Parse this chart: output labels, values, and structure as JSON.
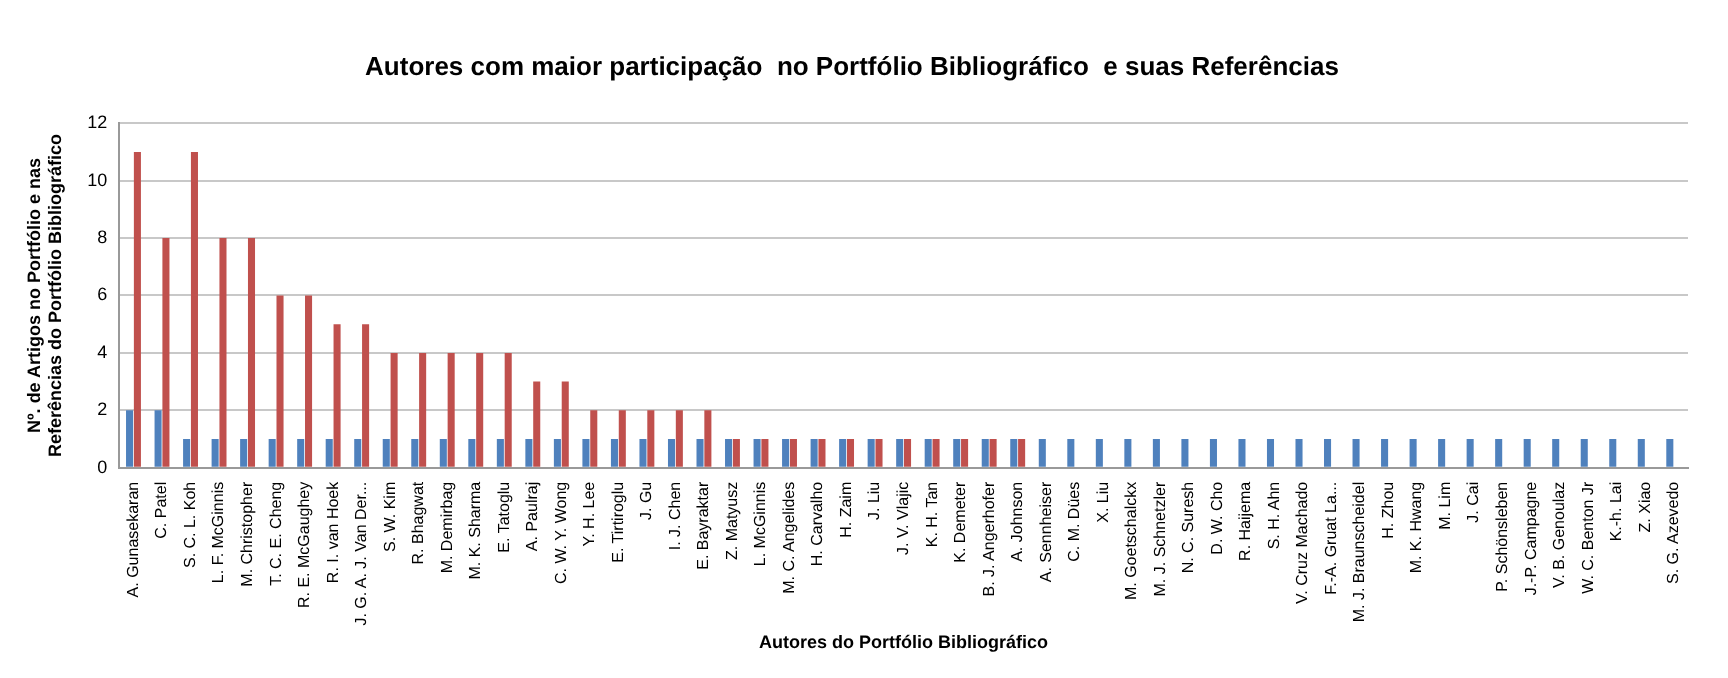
{
  "chart_data": {
    "type": "bar",
    "title": "Autores com maior participação  no Portfólio Bibliográfico  e suas Referências",
    "xlabel": "Autores do Portfólio Bibliográfico",
    "ylabel": "Nº. de Artigos no Portfólio e nas\nReferências do Portfólio Bibliográfico",
    "categories": [
      "A. Gunasekaran",
      "C. Patel",
      "S. C. L. Koh",
      "L. F. McGinnis",
      "M. Christopher",
      "T. C. E. Cheng",
      "R. E. McGaughey",
      "R. I. van Hoek",
      "J. G. A. J. Van Der...",
      "S. W. Kim",
      "R. Bhagwat",
      "M. Demirbag",
      "M. K. Sharma",
      "E. Tatoglu",
      "A. Paulraj",
      "C. W. Y. Wong",
      "Y. H. Lee",
      "E. Tirtiroglu",
      "J. Gu",
      "I. J. Chen",
      "E. Bayraktar",
      "Z. Matyusz",
      "L. McGinnis",
      "M. C. Angelides",
      "H. Carvalho",
      "H. Zaim",
      "J. Liu",
      "J. V. Vlajic",
      "K. H. Tan",
      "K. Demeter",
      "B. J. Angerhofer",
      "A. Johnson",
      "A. Sennheiser",
      "C. M. Dües",
      "X. Liu",
      "M. Goetschalckx",
      "M. J. Schnetzler",
      "N. C. Suresh",
      "D. W. Cho",
      "R. Haijema",
      "S. H. Ahn",
      "V. Cruz Machado",
      "F.-A. Gruat La...",
      "M. J. Braunscheidel",
      "H. Zhou",
      "M. K. Hwang",
      "M. Lim",
      "J. Cai",
      "P. Schönsleben",
      "J.-P. Campagne",
      "V. B. Genoulaz",
      "W. C. Benton Jr",
      "K.-h. Lai",
      "Z. Xiao",
      "S. G. Azevedo"
    ],
    "series": [
      {
        "color": "#4f81bd",
        "values": [
          2,
          2,
          1,
          1,
          1,
          1,
          1,
          1,
          1,
          1,
          1,
          1,
          1,
          1,
          1,
          1,
          1,
          1,
          1,
          1,
          1,
          1,
          1,
          1,
          1,
          1,
          1,
          1,
          1,
          1,
          1,
          1,
          1,
          1,
          1,
          1,
          1,
          1,
          1,
          1,
          1,
          1,
          1,
          1,
          1,
          1,
          1,
          1,
          1,
          1,
          1,
          1,
          1,
          1,
          1
        ]
      },
      {
        "color": "#c0504d",
        "values": [
          11,
          8,
          11,
          8,
          8,
          6,
          6,
          5,
          5,
          4,
          4,
          4,
          4,
          4,
          3,
          3,
          2,
          2,
          2,
          2,
          2,
          1,
          1,
          1,
          1,
          1,
          1,
          1,
          1,
          1,
          1,
          1,
          0,
          0,
          0,
          0,
          0,
          0,
          0,
          0,
          0,
          0,
          0,
          0,
          0,
          0,
          0,
          0,
          0,
          0,
          0,
          0,
          0,
          0,
          0
        ]
      }
    ],
    "ylim": [
      0,
      12
    ],
    "yticks": [
      0,
      2,
      4,
      6,
      8,
      10,
      12
    ],
    "grid": "y",
    "legend": false
  }
}
